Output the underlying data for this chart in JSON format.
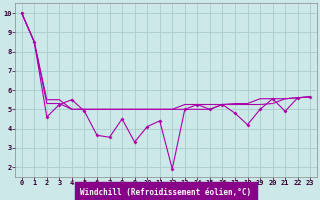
{
  "xlabel": "Windchill (Refroidissement éolien,°C)",
  "bg_color": "#cce8e8",
  "grid_color": "#aacccc",
  "line_color": "#aa00aa",
  "xlim": [
    -0.5,
    23.5
  ],
  "ylim": [
    1.5,
    10.5
  ],
  "xticks": [
    0,
    1,
    2,
    3,
    4,
    5,
    6,
    7,
    8,
    9,
    10,
    11,
    12,
    13,
    14,
    15,
    16,
    17,
    18,
    19,
    20,
    21,
    22,
    23
  ],
  "yticks": [
    2,
    3,
    4,
    5,
    6,
    7,
    8,
    9,
    10
  ],
  "series1": [
    10,
    8.5,
    4.6,
    5.25,
    5.5,
    4.9,
    3.65,
    3.55,
    4.5,
    3.3,
    4.1,
    4.4,
    1.9,
    5.0,
    5.25,
    5.0,
    5.25,
    4.8,
    4.2,
    5.0,
    5.55,
    4.9,
    5.6,
    5.65
  ],
  "series2": [
    10,
    8.5,
    5.3,
    5.3,
    5.0,
    5.0,
    5.0,
    5.0,
    5.0,
    5.0,
    5.0,
    5.0,
    5.0,
    5.0,
    5.0,
    5.0,
    5.25,
    5.25,
    5.25,
    5.25,
    5.3,
    5.55,
    5.6,
    5.65
  ],
  "series3": [
    10,
    8.5,
    5.5,
    5.5,
    5.0,
    5.0,
    5.0,
    5.0,
    5.0,
    5.0,
    5.0,
    5.0,
    5.0,
    5.25,
    5.25,
    5.25,
    5.25,
    5.3,
    5.3,
    5.55,
    5.55,
    5.55,
    5.6,
    5.65
  ],
  "xlabel_bg": "#880088",
  "xlabel_fg": "#ffffff",
  "tick_color": "#330033",
  "tick_fontsize": 5.0,
  "xlabel_fontsize": 5.5,
  "lw": 0.8,
  "ms": 2.0
}
